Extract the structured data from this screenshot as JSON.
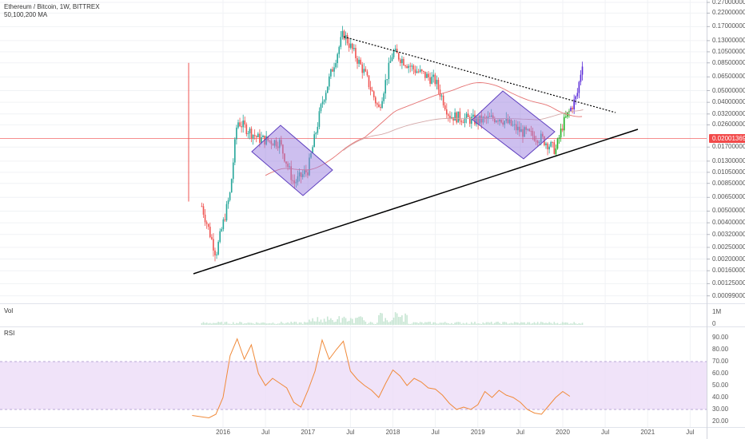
{
  "header": {
    "title": "Ethereum / Bitcoin, 1W, BITTREX",
    "ma_label": "50,100,200 MA"
  },
  "colors": {
    "up": "#26a69a",
    "down": "#ef5350",
    "green_up": "#22b024",
    "purple_up": "#5a2bd8",
    "box_fill": "#9b7fe0",
    "box_stroke": "#5e3fbf",
    "rsi_line": "#f08a3a",
    "rsi_band": "#ecdcf7",
    "ma_red": "#e57373",
    "ma_rose": "#d4a9a9",
    "price_line": "#f24a4a"
  },
  "chart_data": [
    {
      "type": "candlestick",
      "pane": "price",
      "scale": "log",
      "x_tick_labels": [
        "2016",
        "Jul",
        "2017",
        "Jul",
        "2018",
        "Jul",
        "2019",
        "Jul",
        "2020",
        "Jul",
        "2021",
        "Jul"
      ],
      "y_tick_labels": [
        "0.27000000",
        "0.22000000",
        "0.17000000",
        "0.13000000",
        "0.10500000",
        "0.08500000",
        "0.06500000",
        "0.05000000",
        "0.04000000",
        "0.03200000",
        "0.02600000",
        "0.02001369",
        "0.01700000",
        "0.01300000",
        "0.01050000",
        "0.00850000",
        "0.00650000",
        "0.00500000",
        "0.00400000",
        "0.00320000",
        "0.00250000",
        "0.00200000",
        "0.00160000",
        "0.00125000",
        "0.00099000"
      ],
      "ylim": [
        0.00095,
        0.29
      ],
      "current_price": 0.02001369,
      "current_price_label": "0.02001369",
      "approx_weekly_closes": [
        {
          "date": "2015-10",
          "close": 0.0055
        },
        {
          "date": "2015-12",
          "close": 0.0022
        },
        {
          "date": "2016-02",
          "close": 0.007
        },
        {
          "date": "2016-03",
          "close": 0.028
        },
        {
          "date": "2016-06",
          "close": 0.02
        },
        {
          "date": "2016-09",
          "close": 0.0185
        },
        {
          "date": "2016-11",
          "close": 0.0085
        },
        {
          "date": "2017-01",
          "close": 0.011
        },
        {
          "date": "2017-03",
          "close": 0.04
        },
        {
          "date": "2017-06",
          "close": 0.15
        },
        {
          "date": "2017-09",
          "close": 0.07
        },
        {
          "date": "2017-11",
          "close": 0.035
        },
        {
          "date": "2018-01",
          "close": 0.105
        },
        {
          "date": "2018-04",
          "close": 0.075
        },
        {
          "date": "2018-07",
          "close": 0.06
        },
        {
          "date": "2018-09",
          "close": 0.031
        },
        {
          "date": "2019-01",
          "close": 0.028
        },
        {
          "date": "2019-04",
          "close": 0.03
        },
        {
          "date": "2019-07",
          "close": 0.023
        },
        {
          "date": "2019-10",
          "close": 0.02
        },
        {
          "date": "2019-12",
          "close": 0.016
        },
        {
          "date": "2020-01",
          "close": 0.026
        },
        {
          "date": "2020-03",
          "close": 0.045
        },
        {
          "date": "2020-04",
          "close": 0.105
        }
      ],
      "annotations": [
        "dotted descending trendline from mid-2017 high",
        "solid ascending trendline from 2016 low",
        "two purple rectangles (falling channels)"
      ]
    },
    {
      "type": "bar",
      "pane": "volume",
      "label": "Vol",
      "y_tick_labels": [
        "1M",
        "0"
      ]
    },
    {
      "type": "line",
      "pane": "rsi",
      "label": "RSI",
      "y_tick_labels": [
        "90.00",
        "80.00",
        "70.00",
        "60.00",
        "50.00",
        "40.00",
        "30.00",
        "20.00"
      ],
      "band": [
        30,
        70
      ],
      "ylim": [
        14,
        98
      ],
      "points": [
        {
          "date": "2015-10",
          "rsi": 25
        },
        {
          "date": "2015-11",
          "rsi": 23
        },
        {
          "date": "2015-12",
          "rsi": 26
        },
        {
          "date": "2016-01",
          "rsi": 40
        },
        {
          "date": "2016-02",
          "rsi": 75
        },
        {
          "date": "2016-03",
          "rsi": 89
        },
        {
          "date": "2016-04",
          "rsi": 72
        },
        {
          "date": "2016-05",
          "rsi": 84
        },
        {
          "date": "2016-06",
          "rsi": 60
        },
        {
          "date": "2016-07",
          "rsi": 50
        },
        {
          "date": "2016-08",
          "rsi": 56
        },
        {
          "date": "2016-09",
          "rsi": 52
        },
        {
          "date": "2016-10",
          "rsi": 48
        },
        {
          "date": "2016-11",
          "rsi": 36
        },
        {
          "date": "2016-12",
          "rsi": 32
        },
        {
          "date": "2017-01",
          "rsi": 46
        },
        {
          "date": "2017-02",
          "rsi": 62
        },
        {
          "date": "2017-03",
          "rsi": 88
        },
        {
          "date": "2017-04",
          "rsi": 72
        },
        {
          "date": "2017-05",
          "rsi": 80
        },
        {
          "date": "2017-06",
          "rsi": 87
        },
        {
          "date": "2017-07",
          "rsi": 62
        },
        {
          "date": "2017-08",
          "rsi": 55
        },
        {
          "date": "2017-09",
          "rsi": 50
        },
        {
          "date": "2017-10",
          "rsi": 46
        },
        {
          "date": "2017-11",
          "rsi": 40
        },
        {
          "date": "2017-12",
          "rsi": 52
        },
        {
          "date": "2018-01",
          "rsi": 63
        },
        {
          "date": "2018-02",
          "rsi": 58
        },
        {
          "date": "2018-03",
          "rsi": 50
        },
        {
          "date": "2018-04",
          "rsi": 56
        },
        {
          "date": "2018-05",
          "rsi": 53
        },
        {
          "date": "2018-06",
          "rsi": 48
        },
        {
          "date": "2018-07",
          "rsi": 47
        },
        {
          "date": "2018-08",
          "rsi": 42
        },
        {
          "date": "2018-09",
          "rsi": 35
        },
        {
          "date": "2018-10",
          "rsi": 30
        },
        {
          "date": "2018-11",
          "rsi": 32
        },
        {
          "date": "2018-12",
          "rsi": 30
        },
        {
          "date": "2019-01",
          "rsi": 34
        },
        {
          "date": "2019-02",
          "rsi": 45
        },
        {
          "date": "2019-03",
          "rsi": 40
        },
        {
          "date": "2019-04",
          "rsi": 46
        },
        {
          "date": "2019-05",
          "rsi": 42
        },
        {
          "date": "2019-06",
          "rsi": 40
        },
        {
          "date": "2019-07",
          "rsi": 36
        },
        {
          "date": "2019-08",
          "rsi": 30
        },
        {
          "date": "2019-09",
          "rsi": 27
        },
        {
          "date": "2019-10",
          "rsi": 26
        },
        {
          "date": "2019-11",
          "rsi": 33
        },
        {
          "date": "2019-12",
          "rsi": 40
        },
        {
          "date": "2020-01",
          "rsi": 45
        },
        {
          "date": "2020-02",
          "rsi": 41
        }
      ]
    }
  ]
}
